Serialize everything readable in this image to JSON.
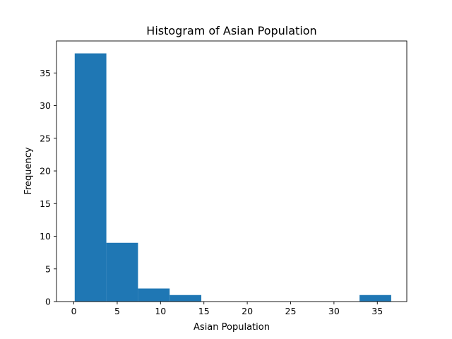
{
  "chart_data": {
    "type": "bar",
    "title": "Histogram of Asian Population",
    "xlabel": "Asian Population",
    "ylabel": "Frequency",
    "xlim": [
      -2.0,
      38.4
    ],
    "ylim": [
      0,
      39.9
    ],
    "xticks": [
      0,
      5,
      10,
      15,
      20,
      25,
      30,
      35
    ],
    "yticks": [
      0,
      5,
      10,
      15,
      20,
      25,
      30,
      35
    ],
    "bin_edges": [
      0.1,
      3.75,
      7.4,
      11.05,
      14.7,
      18.35,
      22.0,
      25.65,
      29.3,
      32.95,
      36.6
    ],
    "values": [
      38,
      9,
      2,
      1,
      0,
      0,
      0,
      0,
      0,
      1
    ],
    "bar_color": "#1f77b4",
    "grid": false
  }
}
